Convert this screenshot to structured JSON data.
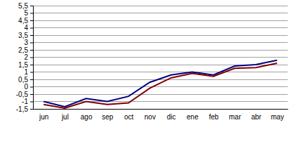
{
  "chart_data": {
    "type": "line",
    "categories": [
      "jun",
      "jul",
      "ago",
      "sep",
      "oct",
      "nov",
      "dic",
      "ene",
      "feb",
      "mar",
      "abr",
      "may"
    ],
    "series": [
      {
        "color": "#000080",
        "values": [
          -1.0,
          -1.35,
          -0.8,
          -1.0,
          -0.65,
          0.3,
          0.8,
          1.0,
          0.8,
          1.4,
          1.5,
          1.8
        ]
      },
      {
        "color": "#800000",
        "values": [
          -1.2,
          -1.45,
          -1.0,
          -1.2,
          -1.1,
          -0.1,
          0.6,
          0.9,
          0.7,
          1.25,
          1.3,
          1.6
        ]
      }
    ],
    "ylim": [
      -1.5,
      5.5
    ],
    "yticks": [
      {
        "value": -1.5,
        "label": "-1,5"
      },
      -1,
      {
        "value": -0.5,
        "label": "-0,5"
      },
      0,
      {
        "value": 0.5,
        "label": "0,5"
      },
      1,
      {
        "value": 1.5,
        "label": "1,5"
      },
      2,
      {
        "value": 2.5,
        "label": "2,5"
      },
      3,
      {
        "value": 3.5,
        "label": "3,5"
      },
      4,
      {
        "value": 4.5,
        "label": "4,5"
      },
      5,
      {
        "value": 5.5,
        "label": "5,5"
      }
    ],
    "grid": true
  }
}
